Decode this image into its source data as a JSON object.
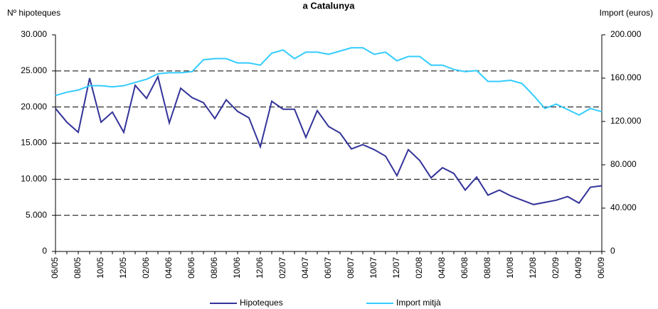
{
  "chart_data": {
    "type": "line",
    "title": "a Catalunya",
    "y_label": "Nº hipoteques",
    "y2_label": "Import (euros)",
    "categories": [
      "06/05",
      null,
      "08/05",
      null,
      "10/05",
      null,
      "12/05",
      null,
      "02/06",
      null,
      "04/06",
      null,
      "06/06",
      null,
      "08/06",
      null,
      "10/06",
      null,
      "12/06",
      null,
      "02/07",
      null,
      "04/07",
      null,
      "06/07",
      null,
      "08/07",
      null,
      "10/07",
      null,
      "12/07",
      null,
      "02/08",
      null,
      "04/08",
      null,
      "06/08",
      null,
      "08/08",
      null,
      "10/08",
      null,
      "12/08",
      null,
      "02/09",
      null,
      "04/09",
      null,
      "06/09"
    ],
    "series": [
      {
        "name": "Hipoteques",
        "color": "#333399",
        "axis": "y",
        "values": [
          19800,
          17900,
          16500,
          24000,
          17900,
          19300,
          16500,
          23000,
          21200,
          24200,
          17800,
          22600,
          21300,
          20600,
          18400,
          21000,
          19400,
          18500,
          14500,
          20800,
          19700,
          19700,
          15800,
          19500,
          17300,
          16400,
          14200,
          14800,
          14100,
          13200,
          10500,
          14100,
          12600,
          10200,
          11600,
          10800,
          8500,
          10300,
          7800,
          8500,
          7700,
          7100,
          6500,
          6800,
          7100,
          7600,
          6700,
          8900,
          9100
        ]
      },
      {
        "name": "Import mitjà",
        "color": "#33ccff",
        "axis": "y2",
        "values": [
          144000,
          147000,
          149000,
          153000,
          153000,
          152000,
          153000,
          156000,
          159000,
          164000,
          165000,
          165000,
          166000,
          177000,
          178000,
          178000,
          174000,
          174000,
          172000,
          183000,
          186000,
          178000,
          184000,
          184000,
          182000,
          185000,
          188000,
          188000,
          182000,
          184000,
          176000,
          180000,
          180000,
          172000,
          172000,
          168000,
          166000,
          167000,
          157000,
          157000,
          158000,
          155000,
          144000,
          132000,
          136000,
          131000,
          126000,
          132000,
          129000
        ]
      }
    ],
    "ylim": [
      0,
      30000
    ],
    "yticks": [
      0,
      {
        "value": 5000,
        "label": "5.000"
      },
      {
        "value": 10000,
        "label": "10.000"
      },
      {
        "value": 15000,
        "label": "15.000"
      },
      {
        "value": 20000,
        "label": "20.000"
      },
      {
        "value": 25000,
        "label": "25.000"
      },
      {
        "value": 30000,
        "label": "30.000"
      }
    ],
    "y2lim": [
      0,
      200000
    ],
    "y2ticks": [
      0,
      {
        "value": 40000,
        "label": "40.000"
      },
      {
        "value": 80000,
        "label": "80.000"
      },
      {
        "value": 120000,
        "label": "120.000"
      },
      {
        "value": 160000,
        "label": "160.000"
      },
      {
        "value": 200000,
        "label": "200.000"
      }
    ],
    "grid": true,
    "legend": "bottom"
  }
}
